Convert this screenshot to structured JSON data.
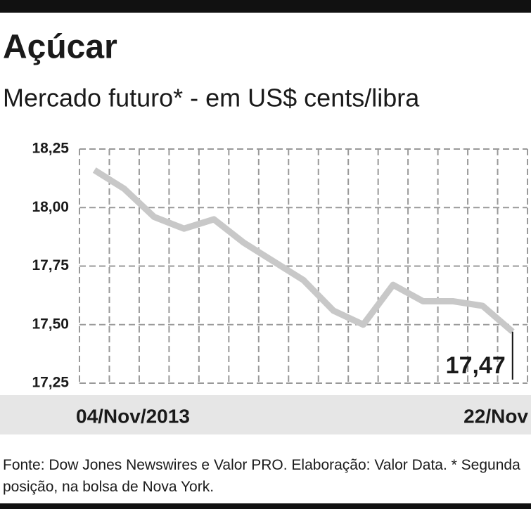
{
  "chart_data": {
    "type": "line",
    "title": "Açúcar",
    "subtitle": "Mercado futuro* - em US$ cents/libra",
    "categories": [
      "04/Nov/2013",
      null,
      null,
      null,
      null,
      null,
      null,
      null,
      null,
      null,
      null,
      null,
      null,
      null,
      "22/Nov"
    ],
    "series": [
      {
        "color": "#c8c8c8",
        "values": [
          18.16,
          18.08,
          17.96,
          17.91,
          17.95,
          17.85,
          17.77,
          17.69,
          17.56,
          17.5,
          17.67,
          17.6,
          17.6,
          17.58,
          17.47
        ],
        "value_labels": [
          null,
          null,
          null,
          null,
          null,
          null,
          null,
          null,
          null,
          null,
          null,
          null,
          null,
          null,
          "17,47"
        ]
      }
    ],
    "ylim": [
      17.25,
      18.25
    ],
    "yticks": [
      {
        "value": 18.25,
        "label": "18,25"
      },
      {
        "value": 18.0,
        "label": "18,00"
      },
      {
        "value": 17.75,
        "label": "17,75"
      },
      {
        "value": 17.5,
        "label": "17,50"
      },
      {
        "value": 17.25,
        "label": "17,25"
      }
    ],
    "grid": true,
    "source": "Fonte: Dow Jones Newswires e Valor PRO. Elaboração: Valor Data. * Segunda posição, na bolsa de Nova York."
  }
}
